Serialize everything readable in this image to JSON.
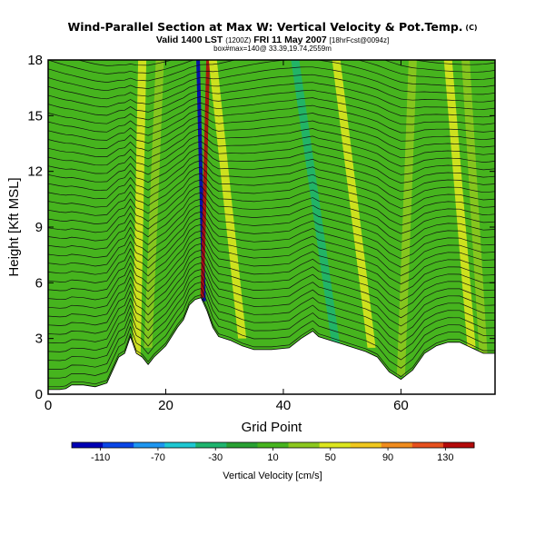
{
  "title": "Wind-Parallel Section at Max W: Vertical Velocity & Pot.Temp.",
  "title_unit": "(C)",
  "subtitle_valid": "Valid 1400 LST",
  "subtitle_run": "(1200Z)",
  "subtitle_date": "FRI 11 May 2007",
  "subtitle_fcst": "[18hrFcst@0094z]",
  "subtitle_loc": "box#max=140@ 33.39,19.74,2559m",
  "chart_data": {
    "type": "heatmap",
    "xlabel": "Grid Point",
    "ylabel": "Height [Kft MSL]",
    "xlim": [
      0,
      76
    ],
    "ylim": [
      0,
      18
    ],
    "xticks": [
      "0",
      "20",
      "40",
      "60"
    ],
    "xtick_values": [
      0,
      20,
      40,
      60
    ],
    "yticks": [
      "0",
      "3",
      "6",
      "9",
      "12",
      "15",
      "18"
    ],
    "ytick_values": [
      0,
      3,
      6,
      9,
      12,
      15,
      18
    ],
    "colorbar_label": "Vertical Velocity [cm/s]",
    "colorbar_ticks": [
      "-110",
      "-70",
      "-30",
      "10",
      "50",
      "90",
      "130"
    ],
    "colorbar_tick_values": [
      -110,
      -70,
      -30,
      10,
      50,
      90,
      130
    ],
    "colorbar_range": [
      -130,
      150
    ],
    "colorbar_colors": [
      "#0000b4",
      "#0a46e6",
      "#1e96f0",
      "#1ec8d2",
      "#1eb46e",
      "#28a032",
      "#46b41e",
      "#8cc81e",
      "#dce61e",
      "#f0c81e",
      "#f08c1e",
      "#e6501e",
      "#b40a0a"
    ],
    "terrain": [
      [
        0,
        0.25
      ],
      [
        2,
        0.25
      ],
      [
        3,
        0.3
      ],
      [
        4,
        0.5
      ],
      [
        6,
        0.5
      ],
      [
        8,
        0.4
      ],
      [
        10,
        0.6
      ],
      [
        11,
        1.3
      ],
      [
        12,
        2.0
      ],
      [
        13,
        2.2
      ],
      [
        14,
        3.1
      ],
      [
        15,
        2.2
      ],
      [
        16,
        2.0
      ],
      [
        17,
        1.6
      ],
      [
        18,
        2.0
      ],
      [
        19,
        2.3
      ],
      [
        20,
        2.6
      ],
      [
        21,
        3.1
      ],
      [
        22,
        3.6
      ],
      [
        23,
        4.0
      ],
      [
        24,
        4.8
      ],
      [
        25,
        5.1
      ],
      [
        26,
        5.2
      ],
      [
        27,
        4.5
      ],
      [
        28,
        3.6
      ],
      [
        29,
        3.1
      ],
      [
        31,
        2.9
      ],
      [
        33,
        2.6
      ],
      [
        35,
        2.4
      ],
      [
        38,
        2.4
      ],
      [
        41,
        2.5
      ],
      [
        43,
        3.0
      ],
      [
        45,
        3.4
      ],
      [
        46,
        3.1
      ],
      [
        48,
        2.9
      ],
      [
        50,
        2.7
      ],
      [
        52,
        2.5
      ],
      [
        54,
        2.3
      ],
      [
        56,
        2.0
      ],
      [
        58,
        1.2
      ],
      [
        60,
        0.8
      ],
      [
        62,
        1.3
      ],
      [
        64,
        2.2
      ],
      [
        66,
        2.6
      ],
      [
        68,
        2.8
      ],
      [
        70,
        2.8
      ],
      [
        72,
        2.5
      ],
      [
        74,
        2.2
      ],
      [
        76,
        2.2
      ]
    ],
    "features": [
      {
        "x_bottom": 26.5,
        "x_top": 25.5,
        "y_bottom": 5.0,
        "y_top": 18,
        "value": -110
      },
      {
        "x_bottom": 26.2,
        "x_top": 27.2,
        "y_bottom": 5.2,
        "y_top": 18,
        "value": 140
      },
      {
        "x_bottom": 15.0,
        "x_top": 16.0,
        "y_bottom": 1.5,
        "y_top": 18,
        "value": 45
      },
      {
        "x_bottom": 17.0,
        "x_top": 19.0,
        "y_bottom": 2.5,
        "y_top": 18,
        "value": 40
      },
      {
        "x_bottom": 33.0,
        "x_top": 28.0,
        "y_bottom": 3.0,
        "y_top": 18,
        "value": 45
      },
      {
        "x_bottom": 49.0,
        "x_top": 42.0,
        "y_bottom": 2.5,
        "y_top": 18,
        "value": -30
      },
      {
        "x_bottom": 55.0,
        "x_top": 49.0,
        "y_bottom": 2.5,
        "y_top": 18,
        "value": 45
      },
      {
        "x_bottom": 60.0,
        "x_top": 62.0,
        "y_bottom": 1.0,
        "y_top": 18,
        "value": 25
      },
      {
        "x_bottom": 72.0,
        "x_top": 68.0,
        "y_bottom": 2.5,
        "y_top": 18,
        "value": 55
      },
      {
        "x_bottom": 74.0,
        "x_top": 71.0,
        "y_bottom": 2.2,
        "y_top": 18,
        "value": 35
      }
    ],
    "contours": {
      "label": "Pot.Temp.",
      "values": [
        8,
        9,
        10,
        11,
        12,
        13,
        14,
        15,
        16,
        17,
        18,
        19,
        20,
        21,
        22,
        23,
        24,
        25,
        26,
        27,
        28,
        29,
        30,
        31,
        32,
        33,
        34,
        35,
        36,
        37,
        38,
        39,
        40,
        41,
        42,
        43,
        44,
        45,
        46,
        47
      ]
    }
  }
}
